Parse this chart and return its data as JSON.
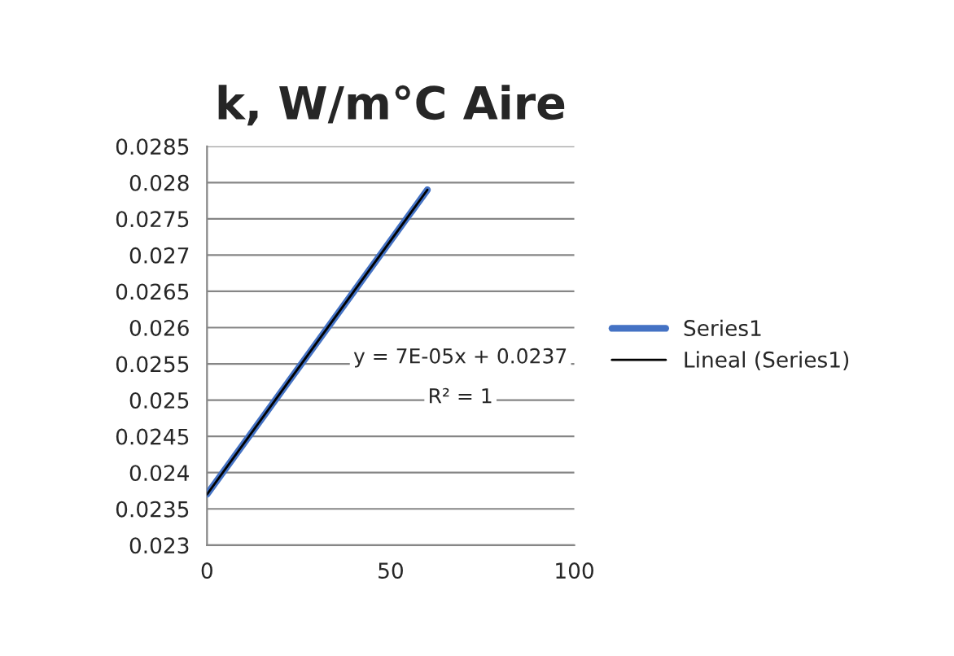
{
  "chart_data": {
    "type": "line",
    "title": "k, W/m°C Aire",
    "x": [
      0,
      20,
      40,
      60
    ],
    "series": [
      {
        "name": "Series1",
        "color": "#4472c4",
        "values": [
          0.0237,
          0.0251,
          0.0265,
          0.0279
        ]
      },
      {
        "name": "Lineal (Series1)",
        "color": "#000000",
        "values": [
          0.0237,
          0.0251,
          0.0265,
          0.0279
        ]
      }
    ],
    "xlim": [
      0,
      100
    ],
    "xticks": [
      0,
      50,
      100
    ],
    "ylim": [
      0.023,
      0.0285
    ],
    "yticks": [
      0.023,
      0.0235,
      0.024,
      0.0245,
      0.025,
      0.0255,
      0.026,
      0.0265,
      0.027,
      0.0275,
      0.028,
      0.0285
    ],
    "grid": "y",
    "legend": "right",
    "marker": "none",
    "line_style": "solid",
    "annotations": [
      "y = 7E-05x + 0.0237",
      "R² = 1"
    ]
  }
}
